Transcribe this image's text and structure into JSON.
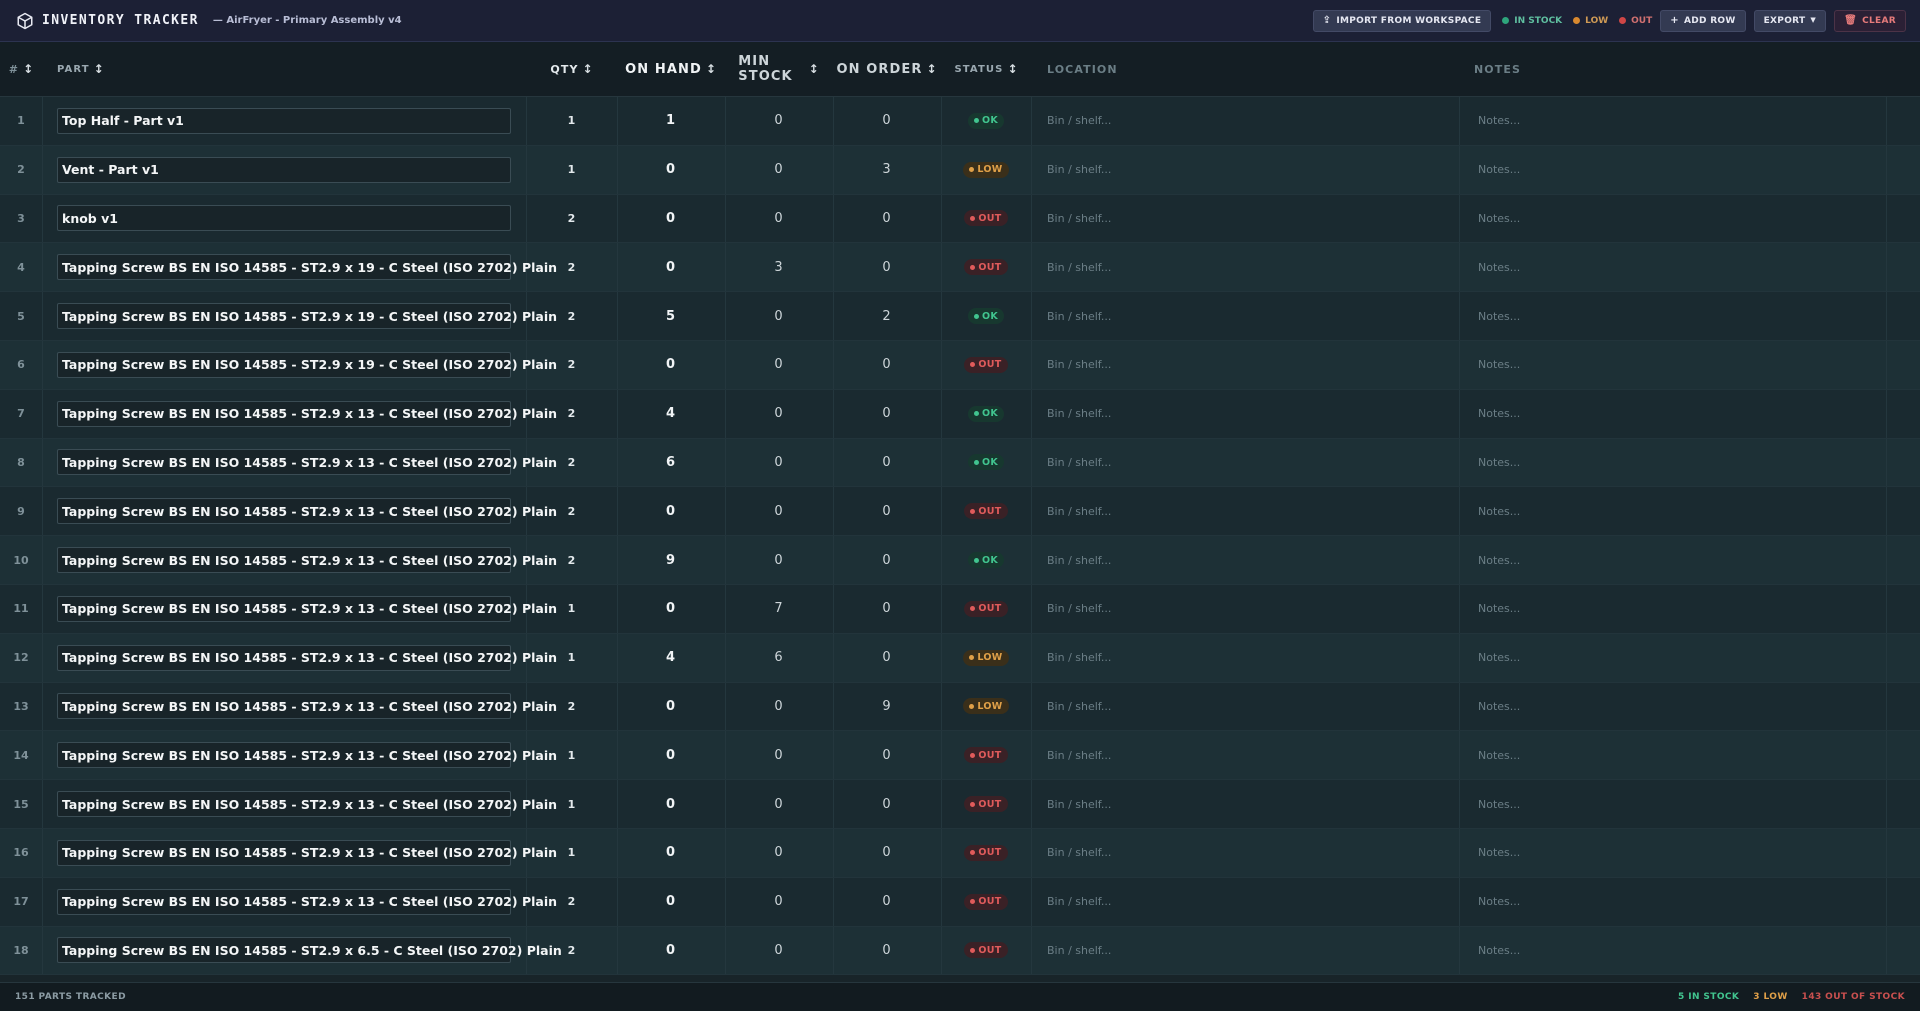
{
  "app": {
    "title": "INVENTORY TRACKER",
    "subtitle": "— AirFryer - Primary Assembly v4"
  },
  "toolbar": {
    "import_label": "IMPORT FROM WORKSPACE",
    "legend_in": "IN STOCK",
    "legend_low": "LOW",
    "legend_out": "OUT",
    "add_row_label": "ADD ROW",
    "export_label": "EXPORT",
    "clear_label": "CLEAR"
  },
  "colors": {
    "ok": "#41c58f",
    "low": "#e0a048",
    "out": "#e05b5b",
    "background": "#182429"
  },
  "icons": [
    "cube-icon",
    "upload-icon",
    "plus-icon",
    "caret-down-icon",
    "trash-icon",
    "sort-icon"
  ],
  "columns": {
    "num": "#",
    "part": "PART",
    "qty": "QTY",
    "on_hand": "ON HAND",
    "min_stock_1": "MIN",
    "min_stock_2": "STOCK",
    "on_order": "ON ORDER",
    "status": "STATUS",
    "location": "LOCATION",
    "notes": "NOTES"
  },
  "placeholders": {
    "location": "Bin / shelf...",
    "notes": "Notes..."
  },
  "rows": [
    {
      "num": "1",
      "part": "Top Half - Part v1",
      "qty": "1",
      "on_hand": "1",
      "min_stock": "0",
      "on_order": "0",
      "status": "OK"
    },
    {
      "num": "2",
      "part": "Vent - Part v1",
      "qty": "1",
      "on_hand": "0",
      "min_stock": "0",
      "on_order": "3",
      "status": "LOW"
    },
    {
      "num": "3",
      "part": "knob v1",
      "qty": "2",
      "on_hand": "0",
      "min_stock": "0",
      "on_order": "0",
      "status": "OUT"
    },
    {
      "num": "4",
      "part": "Tapping Screw BS EN ISO 14585 - ST2.9 x 19 - C Steel (ISO 2702) Plain",
      "qty": "2",
      "on_hand": "0",
      "min_stock": "3",
      "on_order": "0",
      "status": "OUT"
    },
    {
      "num": "5",
      "part": "Tapping Screw BS EN ISO 14585 - ST2.9 x 19 - C Steel (ISO 2702) Plain",
      "qty": "2",
      "on_hand": "5",
      "min_stock": "0",
      "on_order": "2",
      "status": "OK"
    },
    {
      "num": "6",
      "part": "Tapping Screw BS EN ISO 14585 - ST2.9 x 19 - C Steel (ISO 2702) Plain",
      "qty": "2",
      "on_hand": "0",
      "min_stock": "0",
      "on_order": "0",
      "status": "OUT"
    },
    {
      "num": "7",
      "part": "Tapping Screw BS EN ISO 14585 - ST2.9 x 13 - C Steel (ISO 2702) Plain",
      "qty": "2",
      "on_hand": "4",
      "min_stock": "0",
      "on_order": "0",
      "status": "OK"
    },
    {
      "num": "8",
      "part": "Tapping Screw BS EN ISO 14585 - ST2.9 x 13 - C Steel (ISO 2702) Plain",
      "qty": "2",
      "on_hand": "6",
      "min_stock": "0",
      "on_order": "0",
      "status": "OK"
    },
    {
      "num": "9",
      "part": "Tapping Screw BS EN ISO 14585 - ST2.9 x 13 - C Steel (ISO 2702) Plain",
      "qty": "2",
      "on_hand": "0",
      "min_stock": "0",
      "on_order": "0",
      "status": "OUT"
    },
    {
      "num": "10",
      "part": "Tapping Screw BS EN ISO 14585 - ST2.9 x 13 - C Steel (ISO 2702) Plain",
      "qty": "2",
      "on_hand": "9",
      "min_stock": "0",
      "on_order": "0",
      "status": "OK"
    },
    {
      "num": "11",
      "part": "Tapping Screw BS EN ISO 14585 - ST2.9 x 13 - C Steel (ISO 2702) Plain",
      "qty": "1",
      "on_hand": "0",
      "min_stock": "7",
      "on_order": "0",
      "status": "OUT"
    },
    {
      "num": "12",
      "part": "Tapping Screw BS EN ISO 14585 - ST2.9 x 13 - C Steel (ISO 2702) Plain",
      "qty": "1",
      "on_hand": "4",
      "min_stock": "6",
      "on_order": "0",
      "status": "LOW"
    },
    {
      "num": "13",
      "part": "Tapping Screw BS EN ISO 14585 - ST2.9 x 13 - C Steel (ISO 2702) Plain",
      "qty": "2",
      "on_hand": "0",
      "min_stock": "0",
      "on_order": "9",
      "status": "LOW"
    },
    {
      "num": "14",
      "part": "Tapping Screw BS EN ISO 14585 - ST2.9 x 13 - C Steel (ISO 2702) Plain",
      "qty": "1",
      "on_hand": "0",
      "min_stock": "0",
      "on_order": "0",
      "status": "OUT"
    },
    {
      "num": "15",
      "part": "Tapping Screw BS EN ISO 14585 - ST2.9 x 13 - C Steel (ISO 2702) Plain",
      "qty": "1",
      "on_hand": "0",
      "min_stock": "0",
      "on_order": "0",
      "status": "OUT"
    },
    {
      "num": "16",
      "part": "Tapping Screw BS EN ISO 14585 - ST2.9 x 13 - C Steel (ISO 2702) Plain",
      "qty": "1",
      "on_hand": "0",
      "min_stock": "0",
      "on_order": "0",
      "status": "OUT"
    },
    {
      "num": "17",
      "part": "Tapping Screw BS EN ISO 14585 - ST2.9 x 13 - C Steel (ISO 2702) Plain",
      "qty": "2",
      "on_hand": "0",
      "min_stock": "0",
      "on_order": "0",
      "status": "OUT"
    },
    {
      "num": "18",
      "part": "Tapping Screw BS EN ISO 14585 - ST2.9 x 6.5 - C Steel (ISO 2702) Plain",
      "qty": "2",
      "on_hand": "0",
      "min_stock": "0",
      "on_order": "0",
      "status": "OUT"
    }
  ],
  "footer": {
    "count": "151 PARTS TRACKED",
    "in_stock": "5 IN STOCK",
    "low": "3 LOW",
    "out": "143 OUT OF STOCK"
  }
}
